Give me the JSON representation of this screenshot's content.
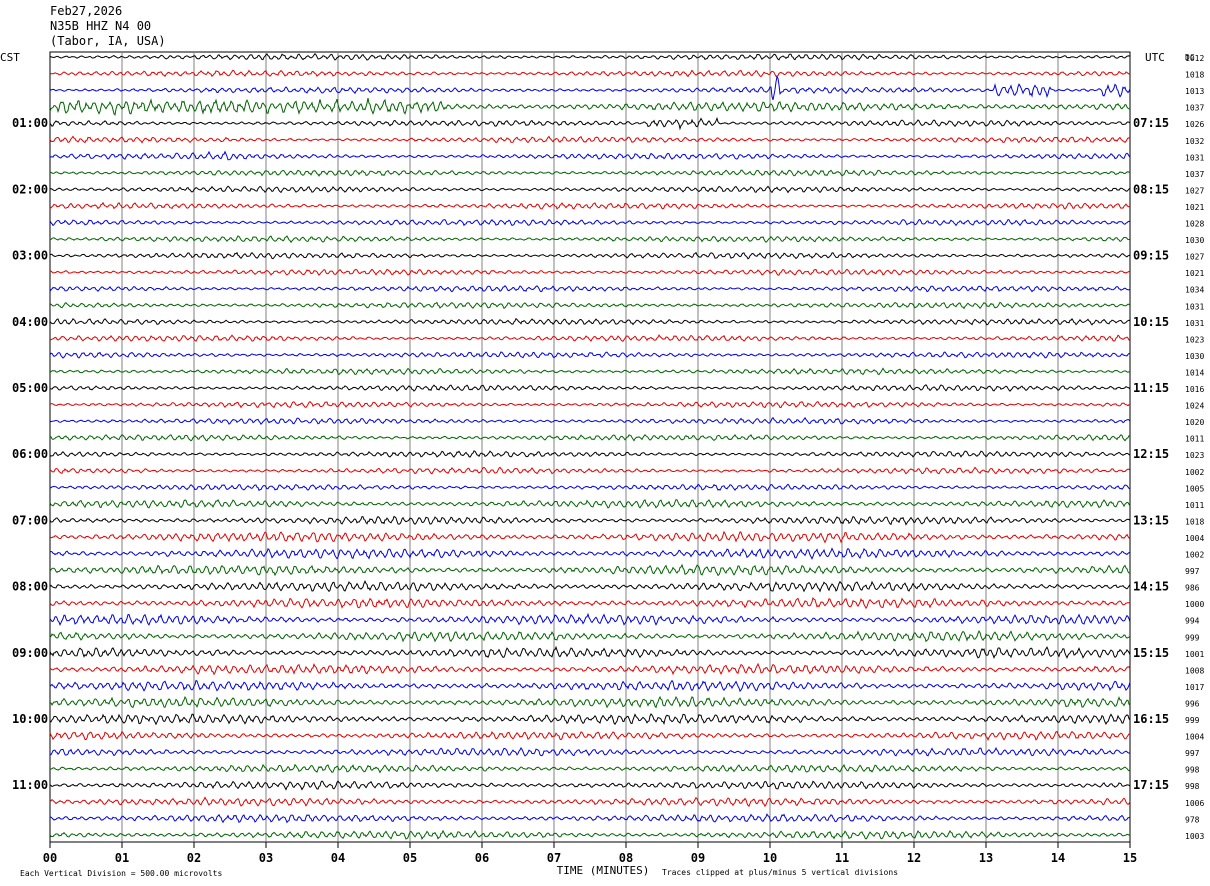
{
  "header": {
    "date": "Feb27,2026",
    "station": "N35B HHZ N4 00",
    "location": "(Tabor, IA, USA)"
  },
  "left_tz": "CST",
  "right_tz": "UTC",
  "right_col_label": "DC",
  "footer": {
    "scale": "Each Vertical Division =  500.00 microvolts",
    "xlabel": "TIME (MINUTES)",
    "clip": "Traces clipped at plus/minus 5 vertical divisions"
  },
  "chart_data": {
    "type": "line",
    "title": "N35B HHZ N4 00",
    "xlabel": "TIME (MINUTES)",
    "xlim": [
      0,
      15
    ],
    "x_ticks": [
      "00",
      "01",
      "02",
      "03",
      "04",
      "05",
      "06",
      "07",
      "08",
      "09",
      "10",
      "11",
      "12",
      "13",
      "14",
      "15"
    ],
    "trace_colors": [
      "#000000",
      "#e00000",
      "#0000e0",
      "#006400"
    ],
    "row_count": 48,
    "left_hour_labels": [
      "01:00",
      "02:00",
      "03:00",
      "04:00",
      "05:00",
      "06:00",
      "07:00",
      "08:00",
      "09:00",
      "10:00",
      "11:00"
    ],
    "right_hour_labels": [
      "07:15",
      "08:15",
      "09:15",
      "10:15",
      "11:15",
      "12:15",
      "13:15",
      "14:15",
      "15:15",
      "16:15",
      "17:15"
    ],
    "dc_offsets": [
      "1012",
      "1018",
      "1013",
      "1037",
      "1026",
      "1032",
      "1031",
      "1037",
      "1027",
      "1021",
      "1028",
      "1030",
      "1027",
      "1021",
      "1034",
      "1031",
      "1031",
      "1023",
      "1030",
      "1014",
      "1016",
      "1024",
      "1020",
      "1011",
      "1023",
      "1002",
      "1005",
      "1011",
      "1018",
      "1004",
      "1002",
      "997",
      "986",
      "1000",
      "994",
      "999",
      "1001",
      "1008",
      "1017",
      "996",
      "999",
      "1004",
      "997",
      "998",
      "998",
      "1006",
      "978",
      "1003"
    ],
    "row_amplitude": [
      3,
      3,
      3,
      5,
      3,
      3,
      3,
      3,
      3,
      3,
      3,
      3,
      3,
      3,
      3,
      3,
      3,
      3,
      3,
      3,
      3,
      3,
      3,
      3,
      3,
      3,
      3,
      4,
      4,
      5,
      5,
      5,
      5,
      5,
      5,
      5,
      5,
      5,
      5,
      5,
      5,
      4,
      4,
      4,
      4,
      4,
      4,
      4
    ],
    "events": [
      {
        "row": 3,
        "start_min": 0.0,
        "end_min": 5.5,
        "amp": 8
      },
      {
        "row": 2,
        "start_min": 10.0,
        "end_min": 10.15,
        "amp": 16
      },
      {
        "row": 2,
        "start_min": 13.1,
        "end_min": 13.9,
        "amp": 8
      },
      {
        "row": 2,
        "start_min": 14.6,
        "end_min": 15.0,
        "amp": 7
      },
      {
        "row": 4,
        "start_min": 8.3,
        "end_min": 9.3,
        "amp": 5
      },
      {
        "row": 6,
        "start_min": 2.2,
        "end_min": 2.6,
        "amp": 5
      }
    ]
  }
}
